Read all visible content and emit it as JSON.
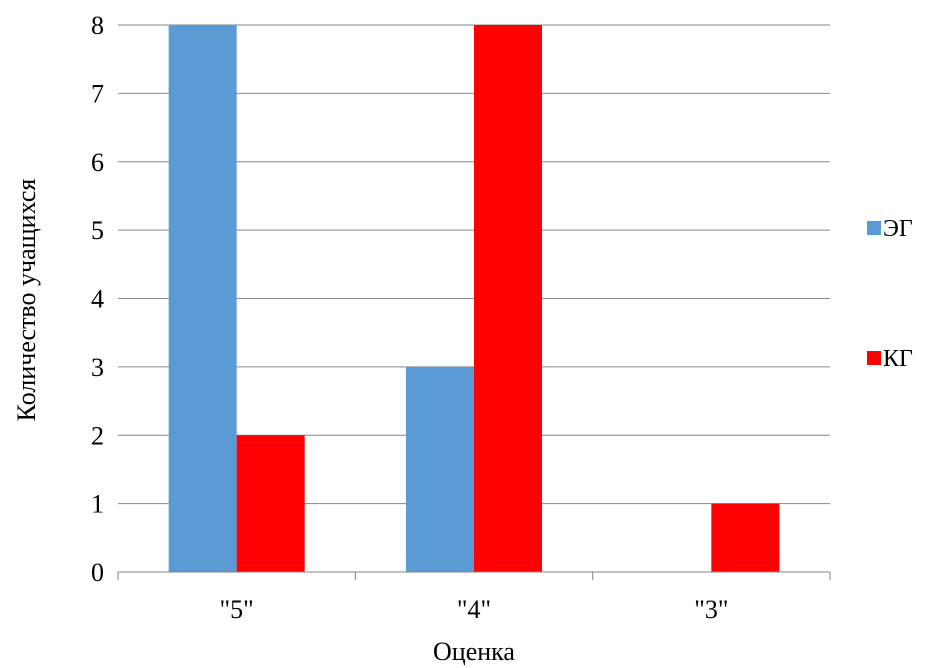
{
  "chart_data": {
    "type": "bar",
    "title": "",
    "xlabel": "Оценка",
    "ylabel": "Количество учащихся",
    "categories": [
      "\"5\"",
      "\"4\"",
      "\"3\""
    ],
    "series": [
      {
        "name": "ЭГ",
        "values": [
          8,
          3,
          0
        ],
        "color": "#5B9BD5"
      },
      {
        "name": "КГ",
        "values": [
          2,
          8,
          1
        ],
        "color": "#FF0000"
      }
    ],
    "ylim": [
      0,
      8
    ],
    "yticks": [
      "0",
      "1",
      "2",
      "3",
      "4",
      "5",
      "6",
      "7",
      "8"
    ],
    "grid": true,
    "legend_position": "right"
  }
}
